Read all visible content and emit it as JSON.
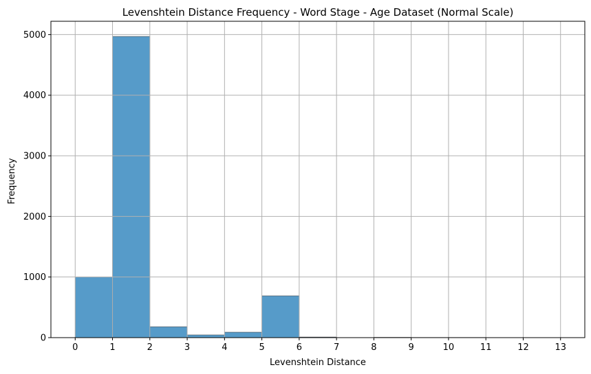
{
  "chart_data": {
    "type": "bar",
    "title": "Levenshtein Distance Frequency - Word Stage - Age Dataset (Normal Scale)",
    "xlabel": "Levenshtein Distance",
    "ylabel": "Frequency",
    "bin_edges": [
      0,
      1,
      2,
      3,
      4,
      5,
      6,
      7,
      8,
      9,
      10,
      11,
      12,
      13
    ],
    "values": [
      1000,
      4970,
      180,
      45,
      90,
      690,
      10,
      0,
      5,
      3,
      3,
      0,
      0
    ],
    "xticks": [
      0,
      1,
      2,
      3,
      4,
      5,
      6,
      7,
      8,
      9,
      10,
      11,
      12,
      13
    ],
    "yticks": [
      0,
      1000,
      2000,
      3000,
      4000,
      5000
    ],
    "xlim": [
      -0.65,
      13.65
    ],
    "ylim": [
      0,
      5220
    ],
    "grid": true,
    "bar_color": "#569bc9",
    "edge_color": "#4a4a4a"
  }
}
